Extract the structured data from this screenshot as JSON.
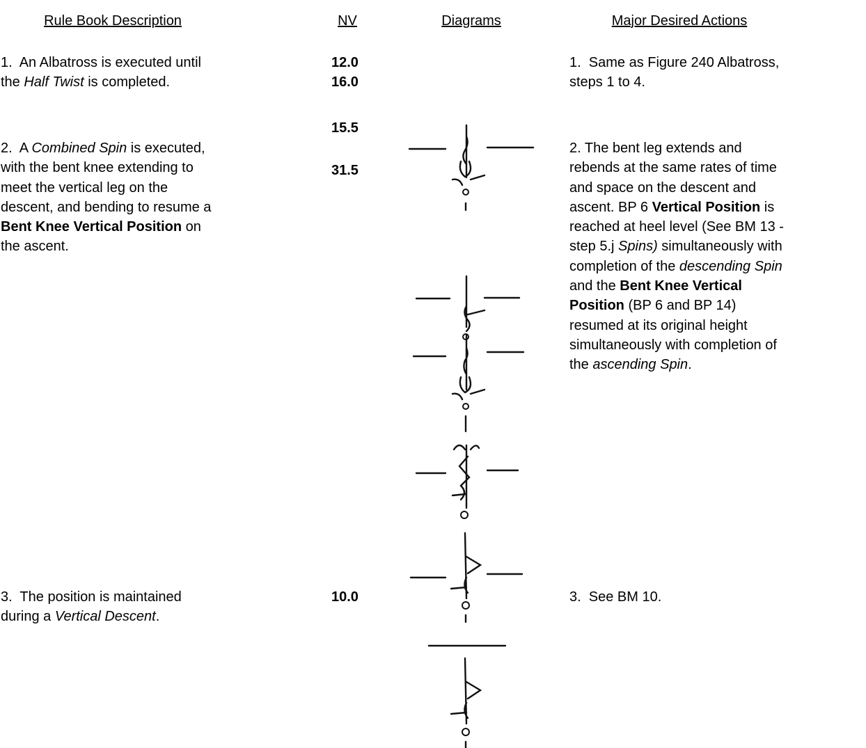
{
  "header": {
    "columns": [
      "Rule Book Description",
      "NV",
      "Diagrams",
      "Major Desired Actions"
    ]
  },
  "nv": [
    "12.0",
    "16.0",
    "15.5",
    "31.5",
    "10.0"
  ],
  "rows": [
    {
      "left": [
        [
          "1.  An Albatross is executed until"
        ],
        [
          "the ",
          {
            "text": "Half Twist",
            "style": "italic"
          },
          " is completed."
        ]
      ],
      "right": [
        [
          "1.  Same as Figure 240 Albatross,"
        ],
        [
          "steps 1 to 4."
        ]
      ]
    },
    {
      "left": [
        [
          "2.  A ",
          {
            "text": "Combined Spin",
            "style": "italic"
          },
          " is executed,"
        ],
        [
          "with the bent knee extending to"
        ],
        [
          "meet the vertical leg on the"
        ],
        [
          "descent, and bending to resume a"
        ],
        [
          {
            "text": "Bent Knee Vertical Position",
            "style": "bold"
          },
          " on"
        ],
        [
          "the ascent."
        ]
      ],
      "right": [
        [
          "2. The bent leg extends and"
        ],
        [
          "rebends at the same rates of time"
        ],
        [
          "and space on the descent and"
        ],
        [
          "ascent. BP 6 ",
          {
            "text": "Vertical Position",
            "style": "bold"
          },
          " is"
        ],
        [
          "reached at heel level (See BM 13 -"
        ],
        [
          "step 5.j ",
          {
            "text": "Spins)",
            "style": "italic"
          },
          " simultaneously with"
        ],
        [
          "completion of the ",
          {
            "text": "descending Spin",
            "style": "italic"
          }
        ],
        [
          "and the ",
          {
            "text": "Bent Knee Vertical",
            "style": "bold"
          }
        ],
        [
          {
            "text": "Position",
            "style": "bold"
          },
          " (BP 6 and BP 14)"
        ],
        [
          "resumed at its original height"
        ],
        [
          "simultaneously with completion of"
        ],
        [
          "the ",
          {
            "text": "ascending Spin",
            "style": "italic"
          },
          "."
        ]
      ]
    },
    {
      "left": [
        [
          "3.  The position is maintained"
        ],
        [
          "during a ",
          {
            "text": "Vertical Descent",
            "style": "italic"
          },
          "."
        ]
      ],
      "right": [
        [
          "3.  See BM 10."
        ]
      ]
    }
  ]
}
